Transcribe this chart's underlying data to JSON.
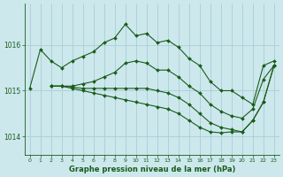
{
  "title": "Graphe pression niveau de la mer (hPa)",
  "bg_color": "#cce8ed",
  "line_color": "#1a5c1a",
  "grid_color": "#aacdd4",
  "xlim": [
    -0.5,
    23.5
  ],
  "ylim": [
    1013.6,
    1016.9
  ],
  "yticks": [
    1014,
    1015,
    1016
  ],
  "xticks": [
    0,
    1,
    2,
    3,
    4,
    5,
    6,
    7,
    8,
    9,
    10,
    11,
    12,
    13,
    14,
    15,
    16,
    17,
    18,
    19,
    20,
    21,
    22,
    23
  ],
  "series": [
    {
      "x": [
        0,
        1,
        2,
        3,
        4,
        5,
        6,
        7,
        8,
        9,
        10,
        11,
        12,
        13,
        14,
        15,
        16,
        17,
        18,
        19,
        20,
        21,
        22,
        23
      ],
      "y": [
        1015.05,
        1015.9,
        1015.65,
        1015.5,
        1015.65,
        1015.75,
        1015.85,
        1016.05,
        1016.15,
        1016.45,
        1016.2,
        1016.25,
        1016.05,
        1016.1,
        1015.95,
        1015.7,
        1015.55,
        1015.2,
        1015.0,
        1015.0,
        1014.85,
        1014.7,
        1015.55,
        1015.65
      ]
    },
    {
      "x": [
        2,
        3,
        4,
        5,
        6,
        7,
        8,
        9,
        10,
        11,
        12,
        13,
        14,
        15,
        16,
        17,
        18,
        19,
        20,
        21,
        22,
        23
      ],
      "y": [
        1015.1,
        1015.1,
        1015.1,
        1015.15,
        1015.2,
        1015.3,
        1015.4,
        1015.6,
        1015.65,
        1015.6,
        1015.45,
        1015.45,
        1015.3,
        1015.1,
        1014.95,
        1014.7,
        1014.55,
        1014.45,
        1014.4,
        1014.6,
        1015.25,
        1015.55
      ]
    },
    {
      "x": [
        2,
        3,
        4,
        5,
        6,
        7,
        8,
        9,
        10,
        11,
        12,
        13,
        14,
        15,
        16,
        17,
        18,
        19,
        20,
        21,
        22,
        23
      ],
      "y": [
        1015.1,
        1015.1,
        1015.08,
        1015.05,
        1015.05,
        1015.05,
        1015.05,
        1015.05,
        1015.05,
        1015.05,
        1015.0,
        1014.95,
        1014.85,
        1014.7,
        1014.5,
        1014.3,
        1014.2,
        1014.15,
        1014.1,
        1014.35,
        1014.75,
        1015.55
      ]
    },
    {
      "x": [
        2,
        3,
        4,
        5,
        6,
        7,
        8,
        9,
        10,
        11,
        12,
        13,
        14,
        15,
        16,
        17,
        18,
        19,
        20,
        21,
        22,
        23
      ],
      "y": [
        1015.1,
        1015.1,
        1015.05,
        1015.0,
        1014.95,
        1014.9,
        1014.85,
        1014.8,
        1014.75,
        1014.7,
        1014.65,
        1014.6,
        1014.5,
        1014.35,
        1014.2,
        1014.1,
        1014.08,
        1014.1,
        1014.1,
        1014.35,
        1014.75,
        1015.55
      ]
    }
  ]
}
